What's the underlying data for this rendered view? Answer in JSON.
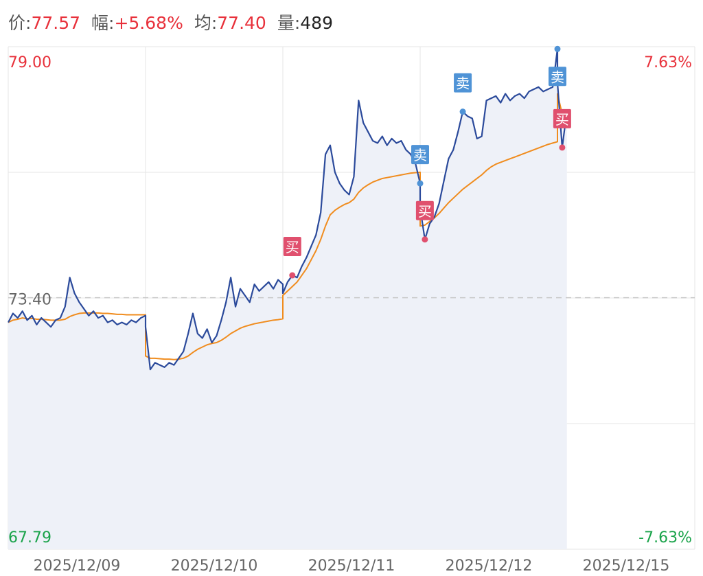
{
  "header": [
    {
      "label": "价:",
      "value": "77.57",
      "color": "#e8313b"
    },
    {
      "label": "幅:",
      "value": "+5.68%",
      "color": "#e8313b"
    },
    {
      "label": "均:",
      "value": "77.40",
      "color": "#e8313b"
    },
    {
      "label": "量:",
      "value": "489",
      "color": "#222222"
    }
  ],
  "chart_data": {
    "type": "line",
    "categories": [
      "2025/12/09",
      "2025/12/10",
      "2025/12/11",
      "2025/12/12",
      "2025/12/15"
    ],
    "ylim": [
      67.79,
      79.0
    ],
    "yticks": [
      {
        "value": 79.0,
        "label": "79.00",
        "color": "#e8313b"
      },
      {
        "value": 73.4,
        "label": "73.40",
        "color": "#666666"
      },
      {
        "value": 67.79,
        "label": "67.79",
        "color": "#1aa34a"
      }
    ],
    "y2lim": [
      -7.63,
      7.63
    ],
    "y2ticks": [
      {
        "value": 7.63,
        "label": "7.63%",
        "color": "#e8313b"
      },
      {
        "value": -7.63,
        "label": "-7.63%",
        "color": "#1aa34a"
      }
    ],
    "reference": 73.4,
    "grid": true,
    "series": [
      {
        "name": "价",
        "color": "#2b4a9b",
        "values": [
          [
            72.85,
            73.05,
            72.95,
            73.1,
            72.9,
            73.0,
            72.8,
            72.95,
            72.85,
            72.75,
            72.9,
            72.95,
            73.2,
            73.85,
            73.5,
            73.3,
            73.15,
            73.0,
            73.1,
            72.95,
            73.0,
            72.85,
            72.9,
            72.8,
            72.85,
            72.8,
            72.9,
            72.85,
            72.95,
            73.0
          ],
          [
            72.75,
            71.8,
            71.95,
            71.9,
            71.85,
            71.95,
            71.9,
            72.05,
            72.2,
            72.6,
            73.05,
            72.6,
            72.5,
            72.7,
            72.4,
            72.55,
            72.9,
            73.3,
            73.85,
            73.2,
            73.6,
            73.45,
            73.3,
            73.7,
            73.55,
            73.65,
            73.75,
            73.6,
            73.8,
            73.7
          ],
          [
            73.5,
            73.75,
            73.9,
            73.85,
            74.1,
            74.3,
            74.55,
            74.8,
            75.3,
            76.6,
            76.8,
            76.2,
            75.95,
            75.8,
            75.7,
            76.1,
            77.8,
            77.3,
            77.1,
            76.9,
            76.85,
            77.0,
            76.8,
            76.95,
            76.85,
            76.9,
            76.7,
            76.6,
            76.4,
            75.95
          ],
          [
            75.4,
            74.7,
            75.05,
            75.2,
            75.5,
            76.0,
            76.5,
            76.7,
            77.1,
            77.55,
            77.45,
            77.4,
            76.95,
            77.0,
            77.8,
            77.85,
            77.9,
            77.75,
            77.95,
            77.8,
            77.9,
            77.95,
            77.85,
            78.0,
            78.05,
            78.1,
            78.0,
            78.05,
            78.1,
            78.95
          ],
          [
            78.2,
            76.75,
            77.57
          ]
        ]
      },
      {
        "name": "均",
        "color": "#f08c1e",
        "values": [
          [
            72.85,
            72.9,
            72.92,
            72.95,
            72.93,
            72.94,
            72.92,
            72.92,
            72.91,
            72.9,
            72.9,
            72.9,
            72.92,
            72.98,
            73.02,
            73.05,
            73.06,
            73.06,
            73.06,
            73.06,
            73.05,
            73.05,
            73.04,
            73.03,
            73.03,
            73.02,
            73.02,
            73.02,
            73.02,
            73.02
          ],
          [
            72.1,
            72.05,
            72.05,
            72.04,
            72.03,
            72.03,
            72.02,
            72.03,
            72.05,
            72.1,
            72.18,
            72.25,
            72.3,
            72.35,
            72.38,
            72.4,
            72.45,
            72.52,
            72.6,
            72.66,
            72.72,
            72.76,
            72.79,
            72.82,
            72.84,
            72.86,
            72.88,
            72.9,
            72.91,
            72.93
          ],
          [
            73.45,
            73.55,
            73.65,
            73.75,
            73.9,
            74.05,
            74.25,
            74.45,
            74.7,
            75.0,
            75.25,
            75.35,
            75.42,
            75.48,
            75.52,
            75.6,
            75.75,
            75.85,
            75.92,
            75.98,
            76.02,
            76.06,
            76.08,
            76.1,
            76.12,
            76.14,
            76.16,
            76.18,
            76.19,
            76.2
          ],
          [
            75.0,
            75.02,
            75.1,
            75.18,
            75.28,
            75.4,
            75.52,
            75.62,
            75.72,
            75.82,
            75.9,
            75.98,
            76.06,
            76.14,
            76.24,
            76.32,
            76.38,
            76.42,
            76.46,
            76.5,
            76.54,
            76.58,
            76.62,
            76.66,
            76.7,
            76.74,
            76.78,
            76.82,
            76.85,
            76.88
          ],
          [
            77.95,
            77.5,
            77.4
          ]
        ]
      }
    ],
    "trades": [
      {
        "side": "买",
        "day": 2,
        "index": 2,
        "color": "#e0506e"
      },
      {
        "side": "卖",
        "day": 2,
        "index": 29,
        "color": "#4f93d6"
      },
      {
        "side": "买",
        "day": 3,
        "index": 1,
        "color": "#e0506e"
      },
      {
        "side": "卖",
        "day": 3,
        "index": 9,
        "color": "#4f93d6"
      },
      {
        "side": "卖",
        "day": 3,
        "index": 29,
        "color": "#4f93d6"
      },
      {
        "side": "买",
        "day": 4,
        "index": 1,
        "color": "#e0506e"
      }
    ]
  }
}
